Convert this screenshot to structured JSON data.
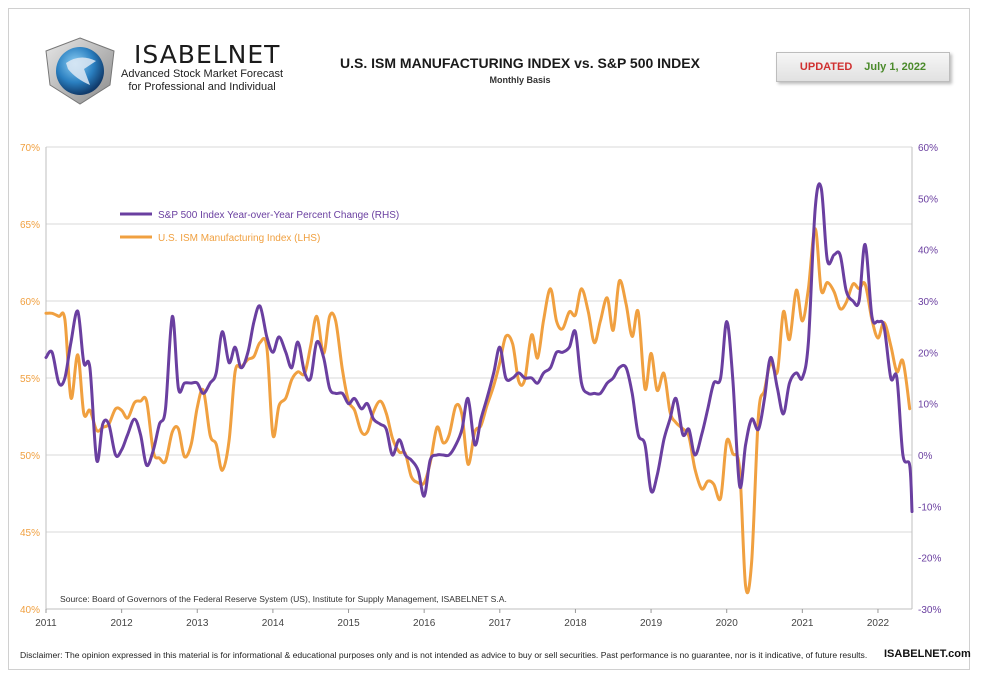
{
  "header": {
    "brand": "ISABELNET",
    "tagline_line1": "Advanced Stock Market Forecast",
    "tagline_line2": "for Professional and Individual",
    "updated_label": "UPDATED",
    "updated_date": "July 1, 2022"
  },
  "chart_data": {
    "type": "line",
    "title": "U.S. ISM MANUFACTURING INDEX vs. S&P 500 INDEX",
    "subtitle": "Monthly Basis",
    "source": "Source: Board of Governors of the Federal Reserve System (US), Institute for Supply Management, ISABELNET S.A.",
    "x_ticks": [
      "2011",
      "2012",
      "2013",
      "2014",
      "2015",
      "2016",
      "2017",
      "2018",
      "2019",
      "2020",
      "2021",
      "2022"
    ],
    "y_left_ticks": [
      "40%",
      "45%",
      "50%",
      "55%",
      "60%",
      "65%",
      "70%"
    ],
    "y_right_ticks": [
      "-30%",
      "-20%",
      "-10%",
      "0%",
      "10%",
      "20%",
      "30%",
      "40%",
      "50%",
      "60%"
    ],
    "y_left_range": [
      40,
      70
    ],
    "y_right_range": [
      -30,
      60
    ],
    "x_range": [
      2011.0,
      2022.45
    ],
    "grid": "horizontal",
    "legend_position": "top-left",
    "colors": {
      "ism": "#F0A040",
      "sp500": "#6A3FA0",
      "left_axis": "#F0A040",
      "right_axis": "#6A3FA0"
    },
    "series": [
      {
        "name": "S&P 500 Index Year-over-Year Percent Change (RHS)",
        "axis": "right",
        "points": [
          [
            2011.0,
            19
          ],
          [
            2011.08,
            20
          ],
          [
            2011.17,
            14
          ],
          [
            2011.25,
            15
          ],
          [
            2011.33,
            22
          ],
          [
            2011.42,
            28
          ],
          [
            2011.5,
            18
          ],
          [
            2011.58,
            17
          ],
          [
            2011.67,
            -1
          ],
          [
            2011.75,
            6
          ],
          [
            2011.83,
            6
          ],
          [
            2011.92,
            0
          ],
          [
            2012.0,
            1
          ],
          [
            2012.08,
            4
          ],
          [
            2012.17,
            7
          ],
          [
            2012.25,
            4
          ],
          [
            2012.33,
            -2
          ],
          [
            2012.42,
            1
          ],
          [
            2012.5,
            6
          ],
          [
            2012.58,
            9
          ],
          [
            2012.67,
            27
          ],
          [
            2012.75,
            13
          ],
          [
            2012.83,
            14
          ],
          [
            2012.92,
            14
          ],
          [
            2013.0,
            14
          ],
          [
            2013.08,
            12
          ],
          [
            2013.17,
            14
          ],
          [
            2013.25,
            16
          ],
          [
            2013.33,
            24
          ],
          [
            2013.42,
            18
          ],
          [
            2013.5,
            21
          ],
          [
            2013.58,
            17
          ],
          [
            2013.67,
            20
          ],
          [
            2013.75,
            26
          ],
          [
            2013.83,
            29
          ],
          [
            2013.92,
            23
          ],
          [
            2014.0,
            20
          ],
          [
            2014.08,
            23
          ],
          [
            2014.17,
            20
          ],
          [
            2014.25,
            17
          ],
          [
            2014.33,
            22
          ],
          [
            2014.42,
            16
          ],
          [
            2014.5,
            15
          ],
          [
            2014.58,
            22
          ],
          [
            2014.67,
            19
          ],
          [
            2014.75,
            13
          ],
          [
            2014.83,
            12
          ],
          [
            2014.92,
            12
          ],
          [
            2015.0,
            10
          ],
          [
            2015.08,
            11
          ],
          [
            2015.17,
            9
          ],
          [
            2015.25,
            10
          ],
          [
            2015.33,
            7
          ],
          [
            2015.42,
            6
          ],
          [
            2015.5,
            5
          ],
          [
            2015.58,
            0
          ],
          [
            2015.67,
            3
          ],
          [
            2015.75,
            0
          ],
          [
            2015.83,
            -1
          ],
          [
            2015.92,
            -3
          ],
          [
            2016.0,
            -8
          ],
          [
            2016.08,
            -1
          ],
          [
            2016.17,
            0
          ],
          [
            2016.25,
            0
          ],
          [
            2016.33,
            0
          ],
          [
            2016.42,
            2
          ],
          [
            2016.5,
            5
          ],
          [
            2016.58,
            11
          ],
          [
            2016.67,
            2
          ],
          [
            2016.75,
            7
          ],
          [
            2016.83,
            11
          ],
          [
            2016.92,
            16
          ],
          [
            2017.0,
            21
          ],
          [
            2017.08,
            15
          ],
          [
            2017.17,
            15
          ],
          [
            2017.25,
            16
          ],
          [
            2017.33,
            15
          ],
          [
            2017.42,
            15
          ],
          [
            2017.5,
            14
          ],
          [
            2017.58,
            16
          ],
          [
            2017.67,
            17
          ],
          [
            2017.75,
            20
          ],
          [
            2017.83,
            20
          ],
          [
            2017.92,
            21
          ],
          [
            2018.0,
            24
          ],
          [
            2018.08,
            14
          ],
          [
            2018.17,
            12
          ],
          [
            2018.25,
            12
          ],
          [
            2018.33,
            12
          ],
          [
            2018.42,
            14
          ],
          [
            2018.5,
            15
          ],
          [
            2018.58,
            17
          ],
          [
            2018.67,
            17
          ],
          [
            2018.75,
            12
          ],
          [
            2018.83,
            4
          ],
          [
            2018.92,
            2
          ],
          [
            2019.0,
            -7
          ],
          [
            2019.08,
            -4
          ],
          [
            2019.17,
            3
          ],
          [
            2019.25,
            7
          ],
          [
            2019.33,
            11
          ],
          [
            2019.42,
            4
          ],
          [
            2019.5,
            5
          ],
          [
            2019.58,
            0
          ],
          [
            2019.67,
            4
          ],
          [
            2019.75,
            9
          ],
          [
            2019.83,
            14
          ],
          [
            2019.92,
            15
          ],
          [
            2020.0,
            26
          ],
          [
            2020.08,
            15
          ],
          [
            2020.17,
            -6
          ],
          [
            2020.25,
            2
          ],
          [
            2020.33,
            7
          ],
          [
            2020.42,
            5
          ],
          [
            2020.5,
            11
          ],
          [
            2020.58,
            19
          ],
          [
            2020.67,
            13
          ],
          [
            2020.75,
            8
          ],
          [
            2020.83,
            14
          ],
          [
            2020.92,
            16
          ],
          [
            2021.0,
            15
          ],
          [
            2021.08,
            22
          ],
          [
            2021.17,
            48
          ],
          [
            2021.25,
            52
          ],
          [
            2021.33,
            38
          ],
          [
            2021.42,
            39
          ],
          [
            2021.5,
            39
          ],
          [
            2021.58,
            32
          ],
          [
            2021.67,
            30
          ],
          [
            2021.75,
            30
          ],
          [
            2021.83,
            41
          ],
          [
            2021.92,
            27
          ],
          [
            2022.0,
            26
          ],
          [
            2022.08,
            25
          ],
          [
            2022.17,
            15
          ],
          [
            2022.25,
            15
          ],
          [
            2022.33,
            0
          ],
          [
            2022.42,
            -2
          ],
          [
            2022.45,
            -11
          ]
        ]
      },
      {
        "name": "U.S. ISM Manufacturing Index (LHS)",
        "axis": "left",
        "points": [
          [
            2011.0,
            59.2
          ],
          [
            2011.08,
            59.2
          ],
          [
            2011.17,
            59.0
          ],
          [
            2011.25,
            58.8
          ],
          [
            2011.33,
            53.7
          ],
          [
            2011.42,
            56.5
          ],
          [
            2011.5,
            52.7
          ],
          [
            2011.58,
            52.9
          ],
          [
            2011.67,
            51.6
          ],
          [
            2011.75,
            51.8
          ],
          [
            2011.83,
            52.0
          ],
          [
            2011.92,
            53.0
          ],
          [
            2012.0,
            52.9
          ],
          [
            2012.08,
            52.4
          ],
          [
            2012.17,
            53.4
          ],
          [
            2012.25,
            53.5
          ],
          [
            2012.33,
            53.5
          ],
          [
            2012.42,
            50.2
          ],
          [
            2012.5,
            49.8
          ],
          [
            2012.58,
            49.6
          ],
          [
            2012.67,
            51.5
          ],
          [
            2012.75,
            51.7
          ],
          [
            2012.83,
            49.9
          ],
          [
            2012.92,
            50.7
          ],
          [
            2013.0,
            53.1
          ],
          [
            2013.08,
            54.2
          ],
          [
            2013.17,
            51.3
          ],
          [
            2013.25,
            50.7
          ],
          [
            2013.33,
            49.0
          ],
          [
            2013.42,
            50.9
          ],
          [
            2013.5,
            55.4
          ],
          [
            2013.58,
            55.7
          ],
          [
            2013.67,
            56.2
          ],
          [
            2013.75,
            56.4
          ],
          [
            2013.83,
            57.3
          ],
          [
            2013.92,
            57.0
          ],
          [
            2014.0,
            51.3
          ],
          [
            2014.08,
            53.2
          ],
          [
            2014.17,
            53.7
          ],
          [
            2014.25,
            54.9
          ],
          [
            2014.33,
            55.4
          ],
          [
            2014.42,
            55.3
          ],
          [
            2014.5,
            57.1
          ],
          [
            2014.58,
            59.0
          ],
          [
            2014.67,
            56.6
          ],
          [
            2014.75,
            59.0
          ],
          [
            2014.83,
            58.7
          ],
          [
            2014.92,
            55.5
          ],
          [
            2015.0,
            53.5
          ],
          [
            2015.08,
            52.9
          ],
          [
            2015.17,
            51.5
          ],
          [
            2015.25,
            51.5
          ],
          [
            2015.33,
            52.8
          ],
          [
            2015.42,
            53.5
          ],
          [
            2015.5,
            52.7
          ],
          [
            2015.58,
            51.1
          ],
          [
            2015.67,
            50.2
          ],
          [
            2015.75,
            50.1
          ],
          [
            2015.83,
            48.6
          ],
          [
            2015.92,
            48.2
          ],
          [
            2016.0,
            48.2
          ],
          [
            2016.08,
            49.5
          ],
          [
            2016.17,
            51.8
          ],
          [
            2016.25,
            50.8
          ],
          [
            2016.33,
            51.3
          ],
          [
            2016.42,
            53.2
          ],
          [
            2016.5,
            52.6
          ],
          [
            2016.58,
            49.4
          ],
          [
            2016.67,
            51.5
          ],
          [
            2016.75,
            51.9
          ],
          [
            2016.83,
            53.2
          ],
          [
            2016.92,
            54.5
          ],
          [
            2017.0,
            56.0
          ],
          [
            2017.08,
            57.7
          ],
          [
            2017.17,
            57.2
          ],
          [
            2017.25,
            54.8
          ],
          [
            2017.33,
            54.9
          ],
          [
            2017.42,
            57.8
          ],
          [
            2017.5,
            56.3
          ],
          [
            2017.58,
            58.8
          ],
          [
            2017.67,
            60.8
          ],
          [
            2017.75,
            58.7
          ],
          [
            2017.83,
            58.2
          ],
          [
            2017.92,
            59.3
          ],
          [
            2018.0,
            59.1
          ],
          [
            2018.08,
            60.8
          ],
          [
            2018.17,
            59.3
          ],
          [
            2018.25,
            57.3
          ],
          [
            2018.33,
            58.7
          ],
          [
            2018.42,
            60.2
          ],
          [
            2018.5,
            58.1
          ],
          [
            2018.58,
            61.3
          ],
          [
            2018.67,
            59.8
          ],
          [
            2018.75,
            57.7
          ],
          [
            2018.83,
            59.3
          ],
          [
            2018.92,
            54.3
          ],
          [
            2019.0,
            56.6
          ],
          [
            2019.08,
            54.2
          ],
          [
            2019.17,
            55.3
          ],
          [
            2019.25,
            52.8
          ],
          [
            2019.33,
            52.1
          ],
          [
            2019.42,
            51.7
          ],
          [
            2019.5,
            51.2
          ],
          [
            2019.58,
            49.1
          ],
          [
            2019.67,
            47.8
          ],
          [
            2019.75,
            48.3
          ],
          [
            2019.83,
            48.1
          ],
          [
            2019.92,
            47.2
          ],
          [
            2020.0,
            50.9
          ],
          [
            2020.08,
            50.1
          ],
          [
            2020.17,
            49.1
          ],
          [
            2020.25,
            41.5
          ],
          [
            2020.33,
            43.1
          ],
          [
            2020.42,
            52.6
          ],
          [
            2020.5,
            54.2
          ],
          [
            2020.58,
            56.0
          ],
          [
            2020.67,
            55.4
          ],
          [
            2020.75,
            59.3
          ],
          [
            2020.83,
            57.5
          ],
          [
            2020.92,
            60.7
          ],
          [
            2021.0,
            58.7
          ],
          [
            2021.08,
            60.8
          ],
          [
            2021.17,
            64.7
          ],
          [
            2021.25,
            60.7
          ],
          [
            2021.33,
            61.2
          ],
          [
            2021.42,
            60.6
          ],
          [
            2021.5,
            59.5
          ],
          [
            2021.58,
            59.9
          ],
          [
            2021.67,
            61.1
          ],
          [
            2021.75,
            60.8
          ],
          [
            2021.83,
            61.1
          ],
          [
            2021.92,
            58.8
          ],
          [
            2022.0,
            57.6
          ],
          [
            2022.08,
            58.6
          ],
          [
            2022.17,
            57.1
          ],
          [
            2022.25,
            55.4
          ],
          [
            2022.33,
            56.1
          ],
          [
            2022.42,
            53.0
          ]
        ]
      }
    ]
  },
  "footer": {
    "disclaimer": "Disclaimer: The opinion expressed in this material is for informational & educational purposes only and is not intended as advice to buy or sell securities. Past performance is no guarantee, nor is it indicative, of future results.",
    "brand": "ISABELNET.com"
  }
}
